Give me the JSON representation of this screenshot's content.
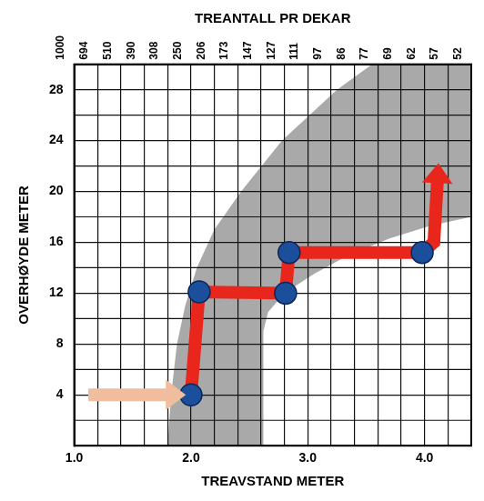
{
  "chart_data": {
    "type": "line",
    "xlabel": "TREAVSTAND METER",
    "x2label": "TREANTALL PR DEKAR",
    "ylabel": "OVERHØYDE METER",
    "xlim": [
      1.0,
      4.4
    ],
    "xticks": [
      {
        "value": 1,
        "label": "1.0"
      },
      {
        "value": 2,
        "label": "2.0"
      },
      {
        "value": 3,
        "label": "3.0"
      },
      {
        "value": 4,
        "label": "4.0"
      }
    ],
    "x2lim": [
      1.0,
      4.4
    ],
    "x2ticks": [
      {
        "value": 1.0,
        "label": "1000"
      },
      {
        "value": 1.2,
        "label": "694"
      },
      {
        "value": 1.4,
        "label": "510"
      },
      {
        "value": 1.6,
        "label": "390"
      },
      {
        "value": 1.8,
        "label": "308"
      },
      {
        "value": 2.0,
        "label": "250"
      },
      {
        "value": 2.2,
        "label": "206"
      },
      {
        "value": 2.4,
        "label": "173"
      },
      {
        "value": 2.6,
        "label": "147"
      },
      {
        "value": 2.8,
        "label": "127"
      },
      {
        "value": 3.0,
        "label": "111"
      },
      {
        "value": 3.2,
        "label": "97"
      },
      {
        "value": 3.4,
        "label": "86"
      },
      {
        "value": 3.6,
        "label": "77"
      },
      {
        "value": 3.8,
        "label": "69"
      },
      {
        "value": 4.0,
        "label": "62"
      },
      {
        "value": 4.2,
        "label": "57"
      },
      {
        "value": 4.4,
        "label": "52"
      }
    ],
    "ylim": [
      0,
      30
    ],
    "yticks": [
      4,
      8,
      12,
      16,
      20,
      24,
      28
    ],
    "grid": true,
    "band": {
      "color": "#a9a9a9",
      "left": {
        "x": [
          1.8,
          1.83,
          1.88,
          1.95,
          2.05,
          2.2,
          2.43,
          2.78,
          3.25,
          3.55
        ],
        "y": [
          0,
          4,
          8,
          11,
          14,
          17,
          20,
          24,
          28,
          30
        ]
      },
      "right": {
        "x": [
          2.62,
          2.62,
          2.66,
          2.8,
          3.05,
          3.35,
          3.7,
          4.05,
          4.4,
          4.4
        ],
        "y": [
          0,
          9,
          10.5,
          12,
          13.5,
          15,
          16.3,
          17.3,
          18,
          30
        ]
      }
    },
    "series": [
      {
        "type": "scatter",
        "color": "#1b4f9c",
        "marker": "circle",
        "x": [
          2.0,
          2.07,
          2.81,
          2.84,
          3.98
        ],
        "y": [
          4.0,
          12.1,
          12.0,
          15.2,
          15.2
        ]
      },
      {
        "type": "line",
        "color": "#e8261c",
        "marker": "arrow",
        "x": [
          2.0,
          2.07,
          2.81,
          2.84,
          3.98,
          4.08,
          4.11
        ],
        "y": [
          4.0,
          12.1,
          12.0,
          15.2,
          15.2,
          16.0,
          20.8
        ]
      },
      {
        "type": "line",
        "color": "#f1bd9f",
        "marker": "arrow",
        "x": [
          1.12,
          1.8
        ],
        "y": [
          4.0,
          4.0
        ]
      }
    ]
  }
}
